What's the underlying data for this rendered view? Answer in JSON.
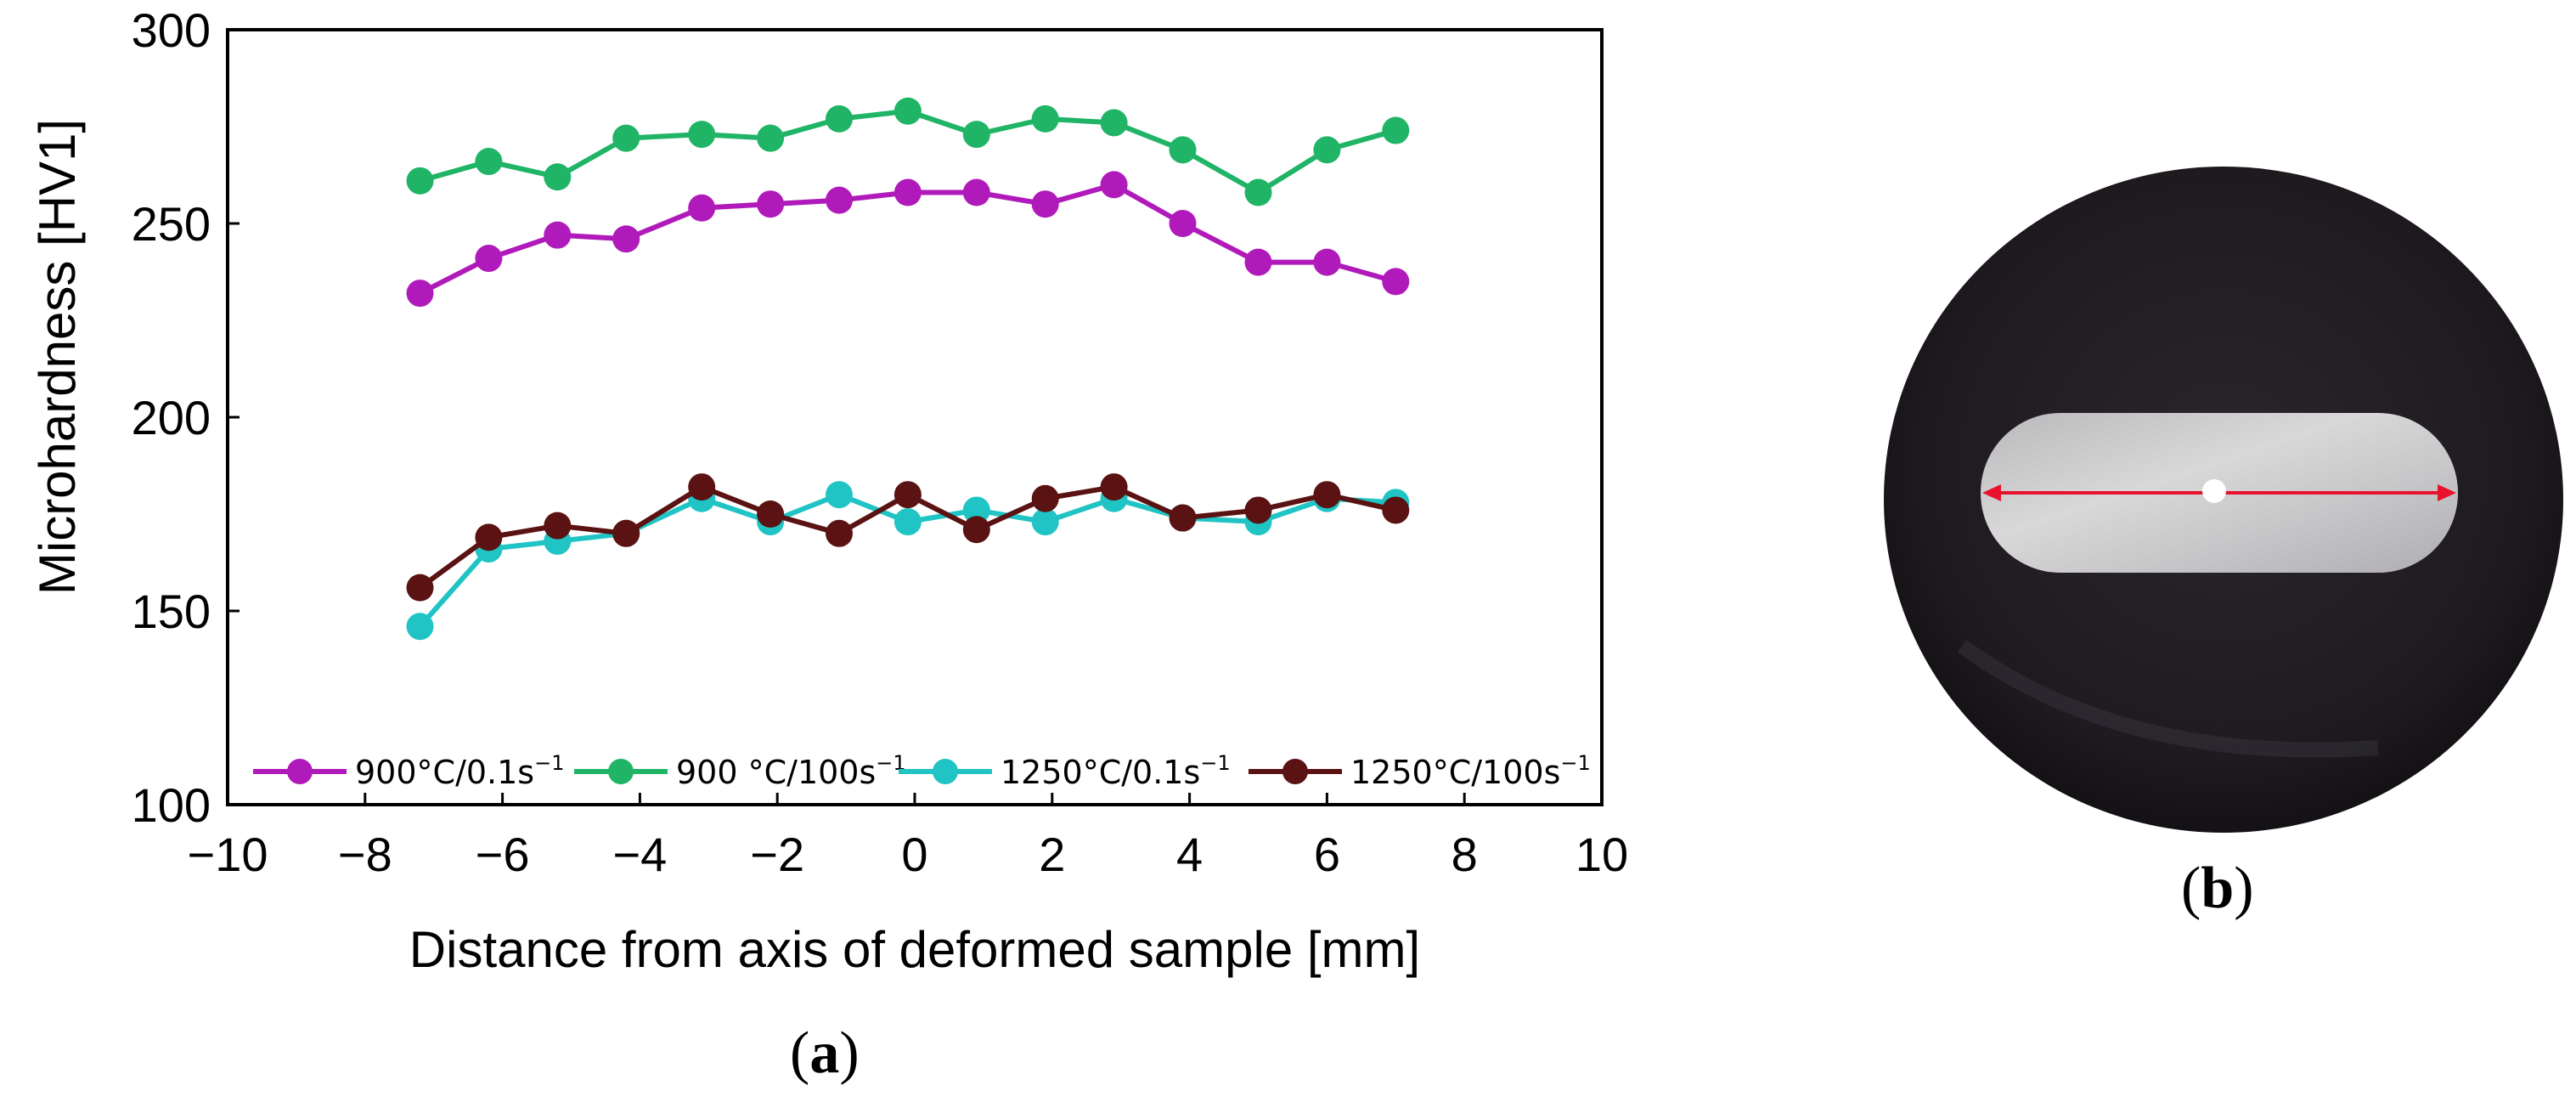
{
  "chart_data": [
    {
      "type": "line",
      "panel_label": "a",
      "xlabel": "Distance from axis of deformed sample [mm]",
      "ylabel": "Microhardness [HV1]",
      "xlim": [
        -10,
        10
      ],
      "ylim": [
        100,
        300
      ],
      "xticks": [
        "−10",
        "−8",
        "−6",
        "−4",
        "−2",
        "0",
        "2",
        "4",
        "6",
        "8",
        "10"
      ],
      "xtick_values": [
        -10,
        -8,
        -6,
        -4,
        -2,
        0,
        2,
        4,
        6,
        8,
        10
      ],
      "yticks": [
        "100",
        "150",
        "200",
        "250",
        "300"
      ],
      "ytick_values": [
        100,
        150,
        200,
        250,
        300
      ],
      "grid": false,
      "legend_position": "bottom",
      "x": [
        -7.2,
        -6.2,
        -5.2,
        -4.2,
        -3.1,
        -2.1,
        -1.1,
        -0.1,
        0.9,
        1.9,
        2.9,
        3.9,
        5.0,
        6.0,
        7.0
      ],
      "series": [
        {
          "name": "900°C/0.1s",
          "superscript": "−1",
          "color": "#b01aba",
          "values": [
            232,
            241,
            247,
            246,
            254,
            255,
            256,
            258,
            258,
            255,
            260,
            250,
            240,
            240,
            235
          ]
        },
        {
          "name": "900 °C/100s",
          "superscript": "−1",
          "color": "#1fb466",
          "values": [
            261,
            266,
            262,
            272,
            273,
            272,
            277,
            279,
            273,
            277,
            276,
            269,
            258,
            269,
            274
          ]
        },
        {
          "name": "1250°C/0.1s",
          "superscript": "−1",
          "color": "#20c4c4",
          "values": [
            146,
            166,
            168,
            170,
            179,
            173,
            180,
            173,
            176,
            173,
            179,
            174,
            173,
            179,
            178
          ]
        },
        {
          "name": "1250°C/100s",
          "superscript": "−1",
          "color": "#5a1212",
          "values": [
            156,
            169,
            172,
            170,
            182,
            175,
            170,
            180,
            171,
            179,
            182,
            174,
            176,
            180,
            176
          ]
        }
      ]
    },
    {
      "type": "image",
      "panel_label": "b",
      "description_visible_only": true
    }
  ]
}
